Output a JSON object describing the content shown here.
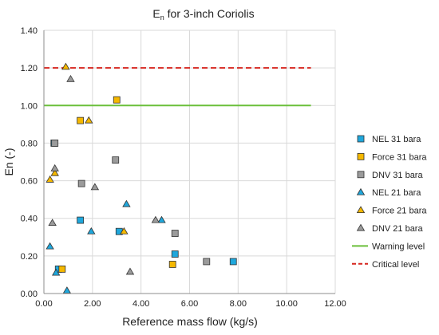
{
  "chart_data": {
    "type": "scatter",
    "title": "En for 3-inch Coriolis",
    "title_main": "E",
    "title_sub": "n",
    "title_rest": " for 3-inch Coriolis",
    "xlabel": "Reference mass flow (kg/s)",
    "ylabel": "En (-)",
    "xlim": [
      0,
      12
    ],
    "ylim": [
      0,
      1.4
    ],
    "x_ticks": [
      "0.00",
      "2.00",
      "4.00",
      "6.00",
      "8.00",
      "10.00",
      "12.00"
    ],
    "y_ticks": [
      "0.00",
      "0.20",
      "0.40",
      "0.60",
      "0.80",
      "1.00",
      "1.20",
      "1.40"
    ],
    "grid": true,
    "legend_position": "right",
    "series": [
      {
        "name": "NEL 31 bara",
        "marker": "square",
        "color": "#1fa7dc",
        "points": [
          [
            0.42,
            0.8
          ],
          [
            0.6,
            0.13
          ],
          [
            1.5,
            0.39
          ],
          [
            3.1,
            0.33
          ],
          [
            5.4,
            0.21
          ],
          [
            7.8,
            0.17
          ]
        ]
      },
      {
        "name": "Force 31 bara",
        "marker": "square",
        "color": "#f5b800",
        "points": [
          [
            0.75,
            0.13
          ],
          [
            1.5,
            0.92
          ],
          [
            3.0,
            1.03
          ],
          [
            5.3,
            0.155
          ]
        ]
      },
      {
        "name": "DNV 31 bara",
        "marker": "square",
        "color": "#9b9b9b",
        "points": [
          [
            0.45,
            0.8
          ],
          [
            1.55,
            0.585
          ],
          [
            2.95,
            0.71
          ],
          [
            5.4,
            0.32
          ],
          [
            6.7,
            0.17
          ]
        ]
      },
      {
        "name": "NEL 21 bara",
        "marker": "triangle",
        "color": "#1fa7dc",
        "points": [
          [
            0.25,
            0.25
          ],
          [
            0.5,
            0.11
          ],
          [
            0.95,
            0.015
          ],
          [
            1.95,
            0.33
          ],
          [
            3.4,
            0.475
          ],
          [
            4.85,
            0.39
          ]
        ]
      },
      {
        "name": "Force 21 bara",
        "marker": "triangle",
        "color": "#f5b800",
        "points": [
          [
            0.25,
            0.605
          ],
          [
            0.45,
            0.64
          ],
          [
            0.9,
            1.205
          ],
          [
            1.85,
            0.92
          ],
          [
            3.3,
            0.33
          ]
        ]
      },
      {
        "name": "DNV 21 bara",
        "marker": "triangle",
        "color": "#9b9b9b",
        "points": [
          [
            0.35,
            0.375
          ],
          [
            0.45,
            0.665
          ],
          [
            1.1,
            1.14
          ],
          [
            2.1,
            0.565
          ],
          [
            3.55,
            0.115
          ],
          [
            4.6,
            0.39
          ]
        ]
      }
    ],
    "reference_lines": [
      {
        "name": "Warning level",
        "y": 1.0,
        "x_range": [
          0,
          11
        ],
        "color": "#6abf3a",
        "style": "solid"
      },
      {
        "name": "Critical level",
        "y": 1.2,
        "x_range": [
          0,
          11
        ],
        "color": "#d6261f",
        "style": "dashed"
      }
    ]
  }
}
